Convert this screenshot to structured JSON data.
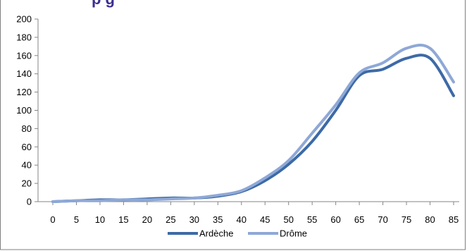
{
  "chart_data": {
    "type": "line",
    "title_fragment": "p             g",
    "x": [
      0,
      5,
      10,
      15,
      20,
      25,
      30,
      35,
      40,
      45,
      50,
      55,
      60,
      65,
      70,
      75,
      80,
      85
    ],
    "x_ticks": [
      "0",
      "5",
      "10",
      "15",
      "20",
      "25",
      "30",
      "35",
      "40",
      "45",
      "50",
      "55",
      "60",
      "65",
      "70",
      "75",
      "80",
      "85"
    ],
    "y_ticks": [
      "0",
      "20",
      "40",
      "60",
      "80",
      "100",
      "120",
      "140",
      "160",
      "180",
      "200"
    ],
    "ylim": [
      0,
      200
    ],
    "xlim": [
      0,
      85
    ],
    "grid": false,
    "legend_position": "bottom",
    "series": [
      {
        "name": "Ardèche",
        "color": "#3d6aa6",
        "values": [
          0,
          1,
          2,
          2,
          3,
          4,
          4,
          6,
          11,
          23,
          41,
          66,
          100,
          138,
          145,
          157,
          157,
          116
        ]
      },
      {
        "name": "Drôme",
        "color": "#8ea8d6",
        "values": [
          0,
          1,
          1,
          2,
          2,
          3,
          4,
          7,
          12,
          26,
          45,
          75,
          106,
          141,
          152,
          168,
          168,
          131
        ]
      }
    ]
  }
}
